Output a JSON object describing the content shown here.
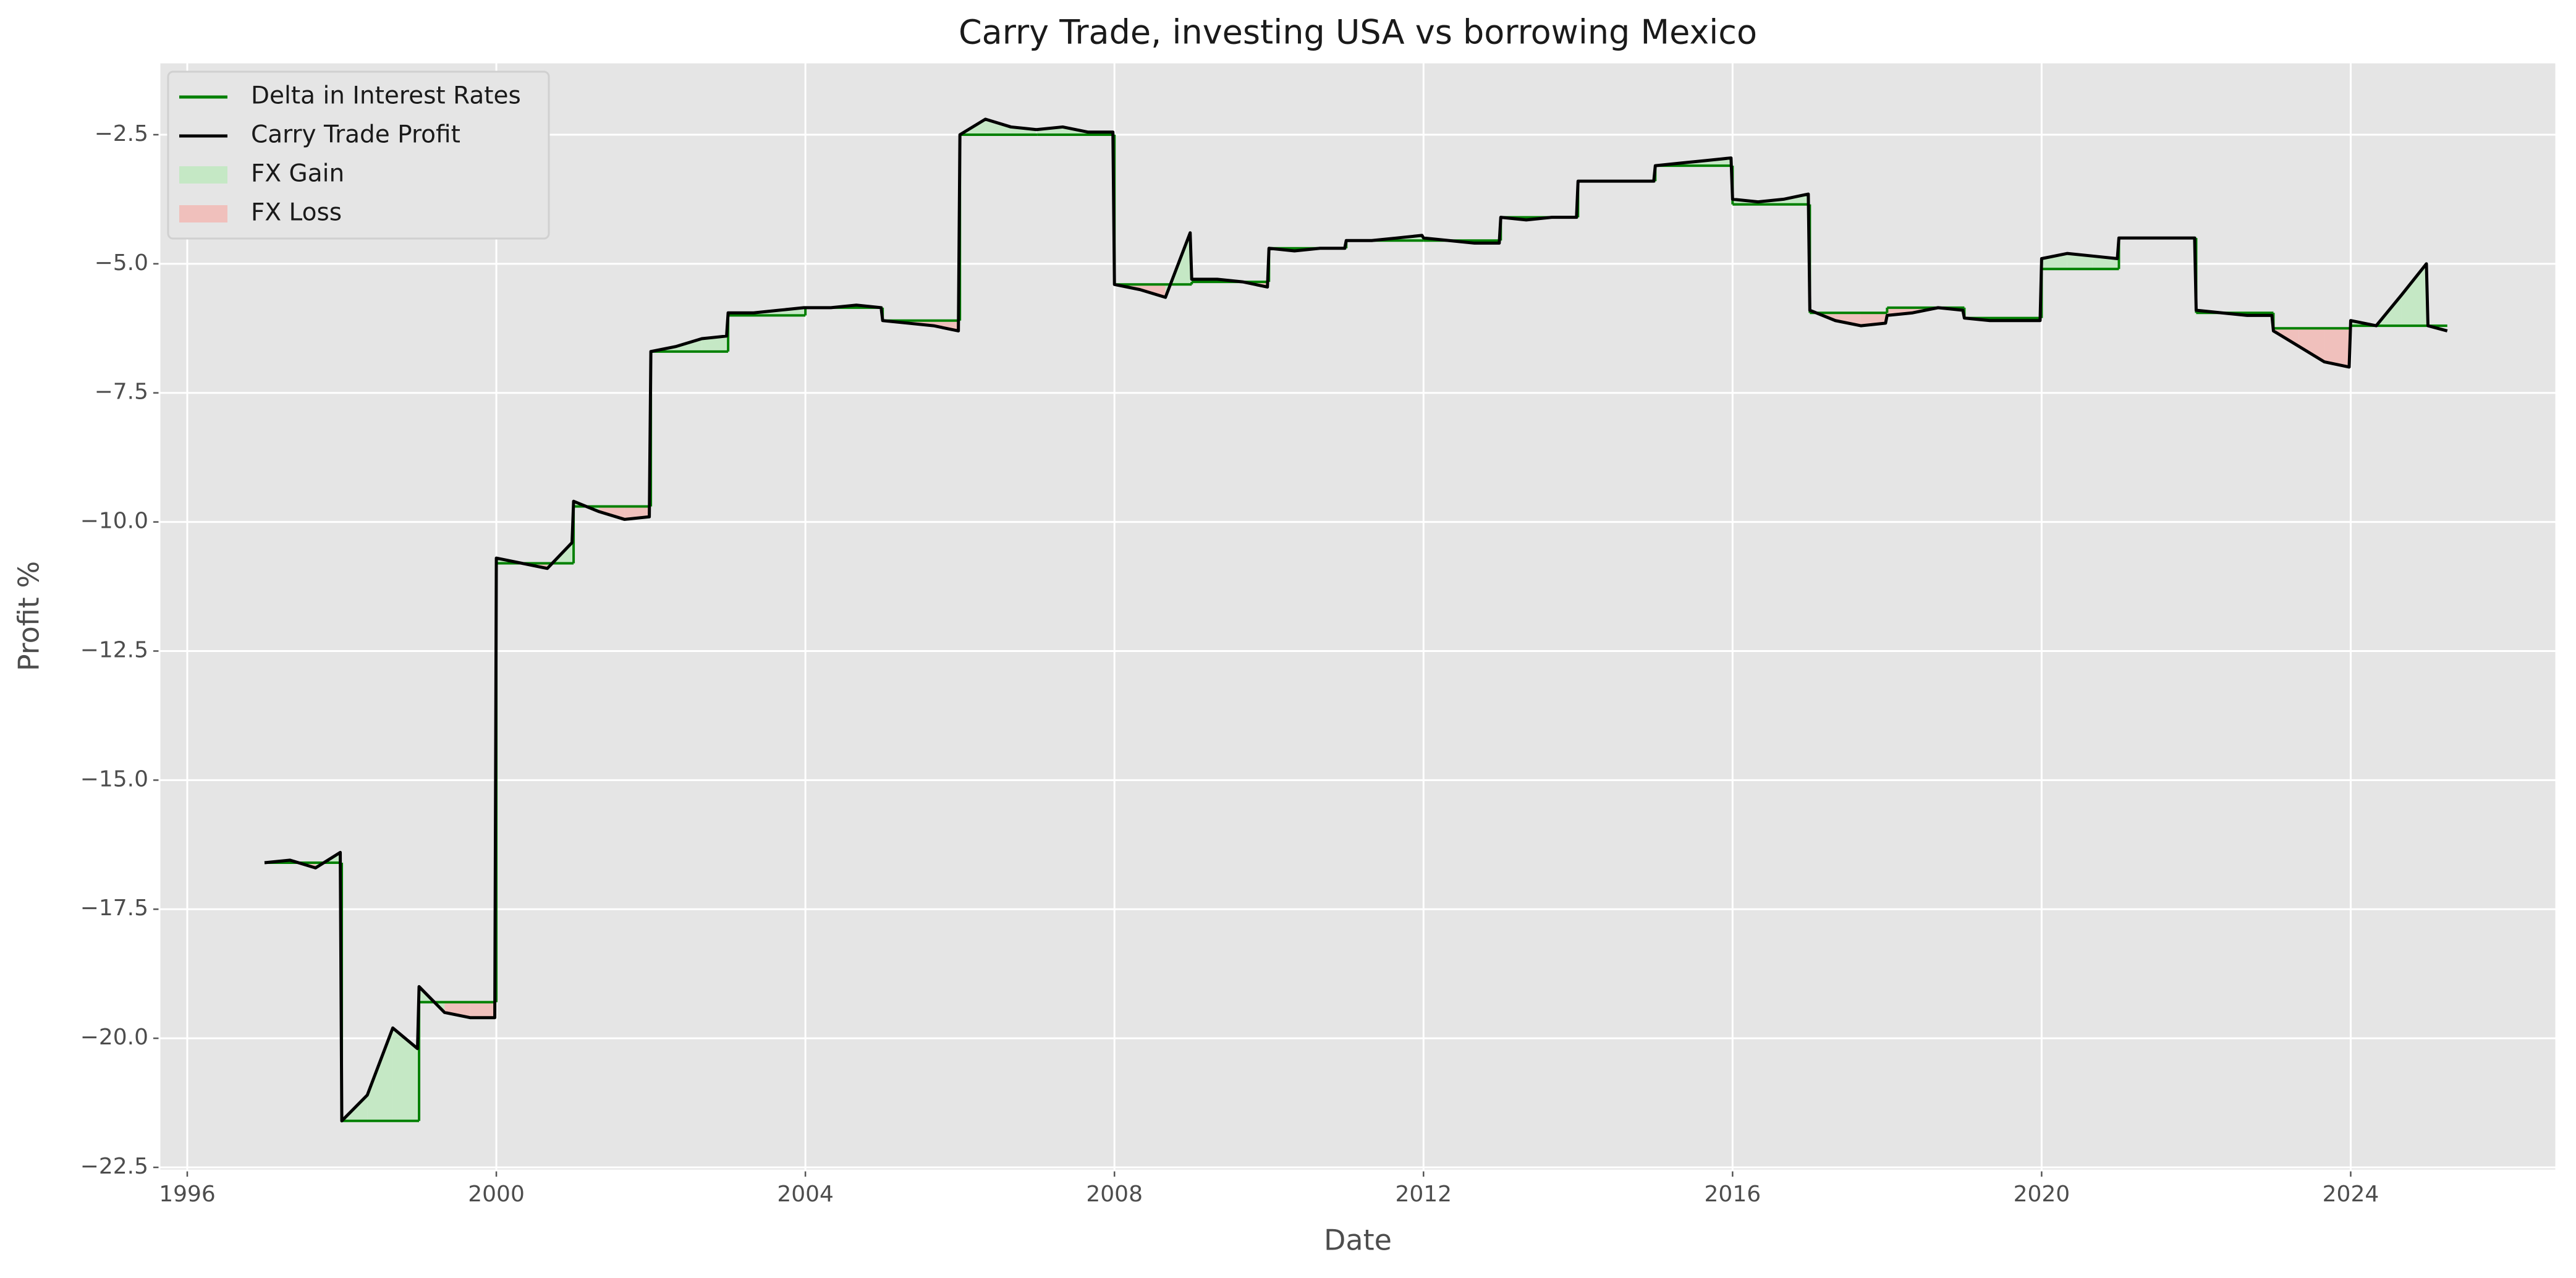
{
  "chart_data": {
    "type": "line",
    "title": "Carry Trade, investing USA vs borrowing Mexico",
    "xlabel": "Date",
    "ylabel": "Profit %",
    "xlim": [
      1995.64,
      2026.66
    ],
    "xticks": [
      1996,
      2000,
      2004,
      2008,
      2012,
      2016,
      2020,
      2024
    ],
    "ylim": [
      -22.56,
      -1.1
    ],
    "yticks": [
      {
        "value": -2.5,
        "label": "−2.5"
      },
      {
        "value": -5.0,
        "label": "−5.0"
      },
      {
        "value": -7.5,
        "label": "−7.5"
      },
      {
        "value": -10.0,
        "label": "−10.0"
      },
      {
        "value": -12.5,
        "label": "−12.5"
      },
      {
        "value": -15.0,
        "label": "−15.0"
      },
      {
        "value": -17.5,
        "label": "−17.5"
      },
      {
        "value": -20.0,
        "label": "−20.0"
      },
      {
        "value": -22.5,
        "label": "−22.5"
      }
    ],
    "grid": true,
    "legend": "upper left",
    "series": [
      {
        "name": "Delta in Interest Rates",
        "color": "#008000",
        "step": true,
        "x": [
          1997,
          1998,
          1999,
          2000,
          2001,
          2002,
          2003,
          2004,
          2005,
          2006,
          2007,
          2008,
          2009,
          2010,
          2011,
          2012,
          2013,
          2014,
          2015,
          2016,
          2017,
          2018,
          2019,
          2020,
          2021,
          2022,
          2023,
          2024,
          2025.25
        ],
        "values": [
          -16.6,
          -21.6,
          -19.3,
          -10.8,
          -9.7,
          -6.7,
          -6.0,
          -5.85,
          -6.1,
          -2.5,
          -2.5,
          -5.4,
          -5.35,
          -4.7,
          -4.55,
          -4.55,
          -4.1,
          -3.4,
          -3.1,
          -3.85,
          -5.95,
          -5.85,
          -6.05,
          -5.1,
          -4.5,
          -5.95,
          -6.25,
          -6.2,
          -6.2
        ]
      },
      {
        "name": "Carry Trade Profit",
        "color": "#000000",
        "x": [
          1997,
          1997.33,
          1997.66,
          1997.98,
          1998,
          1998.33,
          1998.66,
          1998.98,
          1999,
          1999.33,
          1999.66,
          1999.98,
          2000,
          2000.33,
          2000.66,
          2000.98,
          2001,
          2001.33,
          2001.66,
          2001.98,
          2002,
          2002.33,
          2002.66,
          2002.98,
          2003,
          2003.33,
          2003.66,
          2003.98,
          2004,
          2004.33,
          2004.66,
          2004.98,
          2005,
          2005.33,
          2005.66,
          2005.98,
          2006,
          2006.33,
          2006.66,
          2006.98,
          2007,
          2007.33,
          2007.66,
          2007.98,
          2008,
          2008.33,
          2008.66,
          2008.98,
          2009,
          2009.33,
          2009.66,
          2009.98,
          2010,
          2010.33,
          2010.66,
          2010.98,
          2011,
          2011.33,
          2011.66,
          2011.98,
          2012,
          2012.33,
          2012.66,
          2012.98,
          2013,
          2013.33,
          2013.66,
          2013.98,
          2014,
          2014.33,
          2014.66,
          2014.98,
          2015,
          2015.33,
          2015.66,
          2015.98,
          2016,
          2016.33,
          2016.66,
          2016.98,
          2017,
          2017.33,
          2017.66,
          2017.98,
          2018,
          2018.33,
          2018.66,
          2018.98,
          2019,
          2019.33,
          2019.66,
          2019.98,
          2020,
          2020.33,
          2020.66,
          2020.98,
          2021,
          2021.33,
          2021.66,
          2021.98,
          2022,
          2022.33,
          2022.66,
          2022.98,
          2023,
          2023.33,
          2023.66,
          2023.98,
          2024,
          2024.33,
          2024.66,
          2024.98,
          2025,
          2025.25
        ],
        "values": [
          -16.6,
          -16.55,
          -16.7,
          -16.4,
          -21.6,
          -21.1,
          -19.8,
          -20.2,
          -19.0,
          -19.5,
          -19.6,
          -19.6,
          -10.7,
          -10.8,
          -10.9,
          -10.4,
          -9.6,
          -9.8,
          -9.95,
          -9.9,
          -6.7,
          -6.6,
          -6.45,
          -6.4,
          -5.95,
          -5.95,
          -5.9,
          -5.85,
          -5.85,
          -5.85,
          -5.8,
          -5.85,
          -6.1,
          -6.15,
          -6.2,
          -6.3,
          -2.5,
          -2.2,
          -2.35,
          -2.4,
          -2.4,
          -2.35,
          -2.45,
          -2.45,
          -5.4,
          -5.5,
          -5.65,
          -4.4,
          -5.3,
          -5.3,
          -5.35,
          -5.45,
          -4.7,
          -4.75,
          -4.7,
          -4.7,
          -4.55,
          -4.55,
          -4.5,
          -4.45,
          -4.5,
          -4.55,
          -4.6,
          -4.6,
          -4.1,
          -4.15,
          -4.1,
          -4.1,
          -3.4,
          -3.4,
          -3.4,
          -3.4,
          -3.1,
          -3.05,
          -3.0,
          -2.95,
          -3.75,
          -3.8,
          -3.75,
          -3.65,
          -5.9,
          -6.1,
          -6.2,
          -6.15,
          -6.0,
          -5.95,
          -5.85,
          -5.9,
          -6.05,
          -6.1,
          -6.1,
          -6.1,
          -4.9,
          -4.8,
          -4.85,
          -4.9,
          -4.5,
          -4.5,
          -4.5,
          -4.5,
          -5.9,
          -5.95,
          -6.0,
          -6.0,
          -6.3,
          -6.6,
          -6.9,
          -7.0,
          -6.1,
          -6.2,
          -5.6,
          -5.0,
          -6.2,
          -6.3
        ]
      }
    ],
    "fills": [
      {
        "name": "FX Gain",
        "color": "#c5e8c5"
      },
      {
        "name": "FX Loss",
        "color": "#f0c0bc"
      }
    ]
  }
}
